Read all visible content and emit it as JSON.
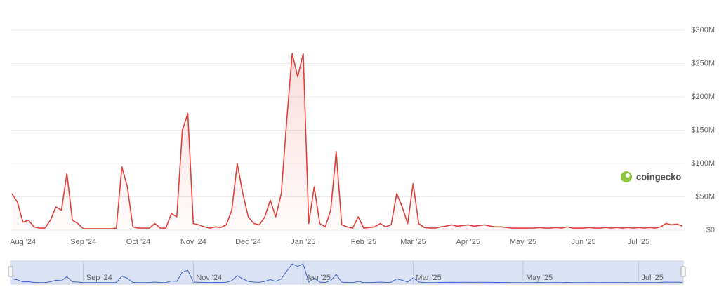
{
  "chart_data": {
    "type": "line",
    "color": "#e0403a",
    "navigator_color": "#3b63c9",
    "grid": true,
    "watermark": "coingecko",
    "ylim": [
      0,
      300000000
    ],
    "yticks": [
      {
        "value": 0,
        "label": "$0"
      },
      {
        "value": 50000000,
        "label": "$50M"
      },
      {
        "value": 100000000,
        "label": "$100M"
      },
      {
        "value": 150000000,
        "label": "$150M"
      },
      {
        "value": 200000000,
        "label": "$200M"
      },
      {
        "value": 250000000,
        "label": "$250M"
      },
      {
        "value": 300000000,
        "label": "$300M"
      }
    ],
    "categories": [
      null,
      null,
      "Aug '24",
      null,
      null,
      null,
      null,
      null,
      null,
      null,
      null,
      null,
      null,
      "Sep '24",
      null,
      null,
      null,
      null,
      null,
      null,
      null,
      null,
      null,
      "Oct '24",
      null,
      null,
      null,
      null,
      null,
      null,
      null,
      null,
      null,
      "Nov '24",
      null,
      null,
      null,
      null,
      null,
      null,
      null,
      null,
      null,
      "Dec '24",
      null,
      null,
      null,
      null,
      null,
      null,
      null,
      null,
      null,
      "Jan '25",
      null,
      null,
      null,
      null,
      null,
      null,
      null,
      null,
      null,
      null,
      "Feb '25",
      null,
      null,
      null,
      null,
      null,
      null,
      null,
      null,
      "Mar '25",
      null,
      null,
      null,
      null,
      null,
      null,
      null,
      null,
      null,
      "Apr '25",
      null,
      null,
      null,
      null,
      null,
      null,
      null,
      null,
      null,
      "May '25",
      null,
      null,
      null,
      null,
      null,
      null,
      null,
      null,
      null,
      null,
      "Jun '25",
      null,
      null,
      null,
      null,
      null,
      null,
      null,
      null,
      null,
      "Jul '25",
      null,
      null,
      null,
      null,
      null,
      null,
      null,
      null
    ],
    "values": [
      55000000,
      42000000,
      12000000,
      15000000,
      5000000,
      3000000,
      3000000,
      15000000,
      35000000,
      30000000,
      85000000,
      15000000,
      10000000,
      2000000,
      2000000,
      2000000,
      2000000,
      2000000,
      2000000,
      3000000,
      95000000,
      65000000,
      5000000,
      3000000,
      3000000,
      3000000,
      10000000,
      3000000,
      3000000,
      25000000,
      20000000,
      150000000,
      175000000,
      10000000,
      8000000,
      5000000,
      3000000,
      5000000,
      4000000,
      8000000,
      30000000,
      100000000,
      55000000,
      20000000,
      10000000,
      8000000,
      20000000,
      45000000,
      20000000,
      55000000,
      165000000,
      265000000,
      230000000,
      265000000,
      10000000,
      65000000,
      10000000,
      5000000,
      30000000,
      118000000,
      8000000,
      5000000,
      3000000,
      20000000,
      3000000,
      4000000,
      5000000,
      10000000,
      5000000,
      8000000,
      55000000,
      35000000,
      10000000,
      70000000,
      10000000,
      4000000,
      3000000,
      3000000,
      5000000,
      6000000,
      8000000,
      6000000,
      7000000,
      8000000,
      6000000,
      7000000,
      8000000,
      6000000,
      5000000,
      5000000,
      4000000,
      3000000,
      3000000,
      3000000,
      3000000,
      3000000,
      4000000,
      3000000,
      3000000,
      4000000,
      3000000,
      5000000,
      3000000,
      3000000,
      3000000,
      4000000,
      3000000,
      3000000,
      4000000,
      3000000,
      4000000,
      3000000,
      4000000,
      3000000,
      4000000,
      3000000,
      4000000,
      3000000,
      5000000,
      10000000,
      8000000,
      9000000,
      6000000
    ],
    "navigator": {
      "labels": [
        "Sep '24",
        "Nov '24",
        "Jan '25",
        "Mar '25",
        "May '25",
        "Jul '25"
      ]
    }
  }
}
